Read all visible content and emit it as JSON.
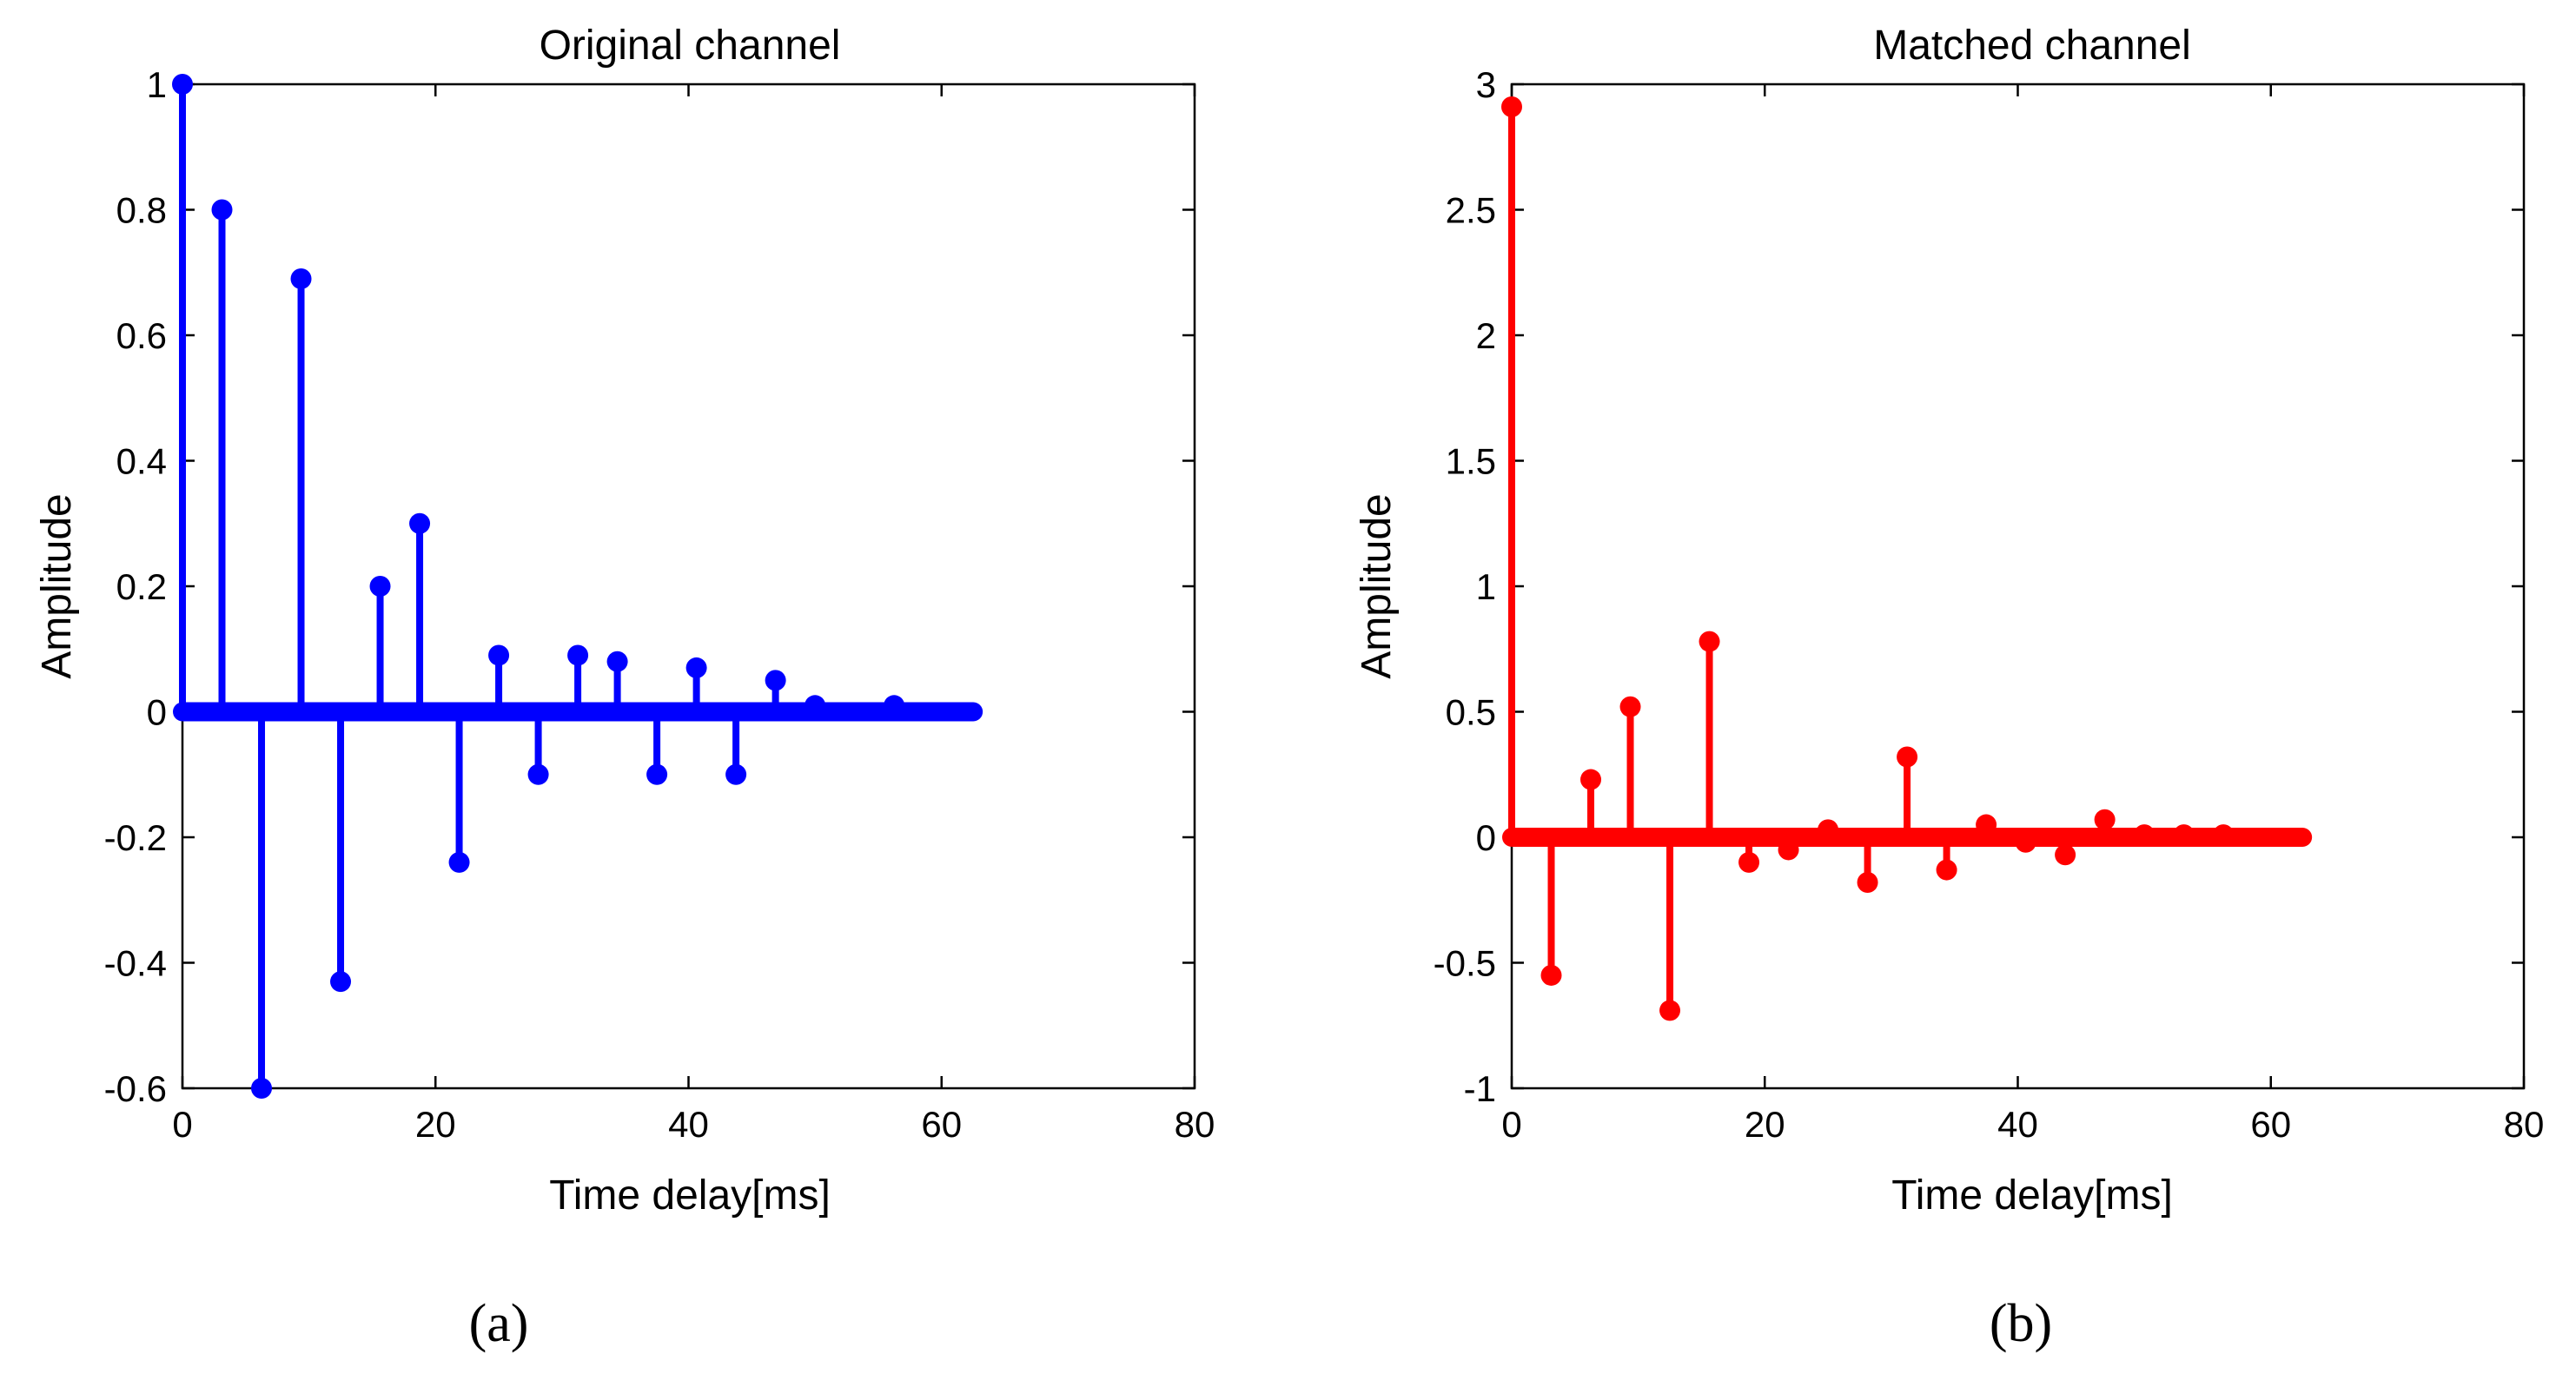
{
  "chart_data": [
    {
      "type": "stem",
      "panel": "a",
      "panel_label": "(a)",
      "title": "Original channel",
      "xlabel": "Time delay[ms]",
      "ylabel": "Amplitude",
      "xlim": [
        0,
        80
      ],
      "ylim": [
        -0.6,
        1
      ],
      "xticks": [
        0,
        20,
        40,
        60,
        80
      ],
      "xtick_labels": [
        "0",
        "20",
        "40",
        "60",
        "80"
      ],
      "yticks": [
        -0.6,
        -0.4,
        -0.2,
        0,
        0.2,
        0.4,
        0.6,
        0.8,
        1
      ],
      "ytick_labels": [
        "-0.6",
        "-0.4",
        "-0.2",
        "0",
        "0.2",
        "0.4",
        "0.6",
        "0.8",
        "1"
      ],
      "grid": false,
      "color": "#0000ff",
      "baseline_x_range": [
        0,
        62.5
      ],
      "sample_step": 0.125,
      "x": [
        0,
        3.125,
        6.25,
        9.375,
        12.5,
        15.625,
        18.75,
        21.875,
        25,
        28.125,
        31.25,
        34.375,
        37.5,
        40.625,
        43.75,
        46.875,
        50,
        56.25
      ],
      "values": [
        1.0,
        0.8,
        -0.6,
        0.69,
        -0.43,
        0.2,
        0.3,
        -0.24,
        0.09,
        -0.1,
        0.09,
        0.08,
        -0.1,
        0.07,
        -0.1,
        0.05,
        0.01,
        0.01
      ]
    },
    {
      "type": "stem",
      "panel": "b",
      "panel_label": "(b)",
      "title": "Matched channel",
      "xlabel": "Time delay[ms]",
      "ylabel": "Amplitude",
      "xlim": [
        0,
        80
      ],
      "ylim": [
        -1,
        3
      ],
      "xticks": [
        0,
        20,
        40,
        60,
        80
      ],
      "xtick_labels": [
        "0",
        "20",
        "40",
        "60",
        "80"
      ],
      "yticks": [
        -1,
        -0.5,
        0,
        0.5,
        1,
        1.5,
        2,
        2.5,
        3
      ],
      "ytick_labels": [
        "-1",
        "-0.5",
        "0",
        "0.5",
        "1",
        "1.5",
        "2",
        "2.5",
        "3"
      ],
      "grid": false,
      "color": "#ff0000",
      "baseline_x_range": [
        0,
        62.5
      ],
      "sample_step": 0.125,
      "x": [
        0,
        3.125,
        6.25,
        9.375,
        12.5,
        15.625,
        18.75,
        21.875,
        25,
        28.125,
        31.25,
        34.375,
        37.5,
        40.625,
        43.75,
        46.875,
        50,
        53.125,
        56.25
      ],
      "values": [
        2.91,
        -0.55,
        0.23,
        0.52,
        -0.69,
        0.78,
        -0.1,
        -0.05,
        0.03,
        -0.18,
        0.32,
        -0.13,
        0.05,
        -0.02,
        -0.07,
        0.07,
        0.01,
        0.01,
        0.01
      ]
    }
  ]
}
